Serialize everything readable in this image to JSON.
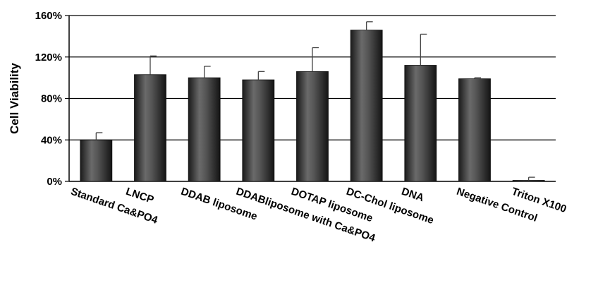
{
  "chart_data": {
    "type": "bar",
    "ylabel": "Cell Viability",
    "ylim": [
      0,
      160
    ],
    "yticks": [
      0,
      40,
      80,
      120,
      160
    ],
    "ytick_labels": [
      "0%",
      "40%",
      "80%",
      "120%",
      "160%"
    ],
    "grid": true,
    "categories": [
      "Standard Ca&PO4",
      "LNCP",
      "DDAB liposome",
      "DDABliposome with Ca&PO4",
      "DOTAP liposome",
      "DC-Chol liposome",
      "DNA",
      "Negative Control",
      "Triton X100"
    ],
    "values": [
      40,
      103,
      100,
      98,
      106,
      146,
      112,
      99,
      1
    ],
    "error": [
      7,
      18,
      11,
      8,
      23,
      8,
      30,
      1,
      3
    ],
    "bar_color": "#3a3a3a"
  }
}
